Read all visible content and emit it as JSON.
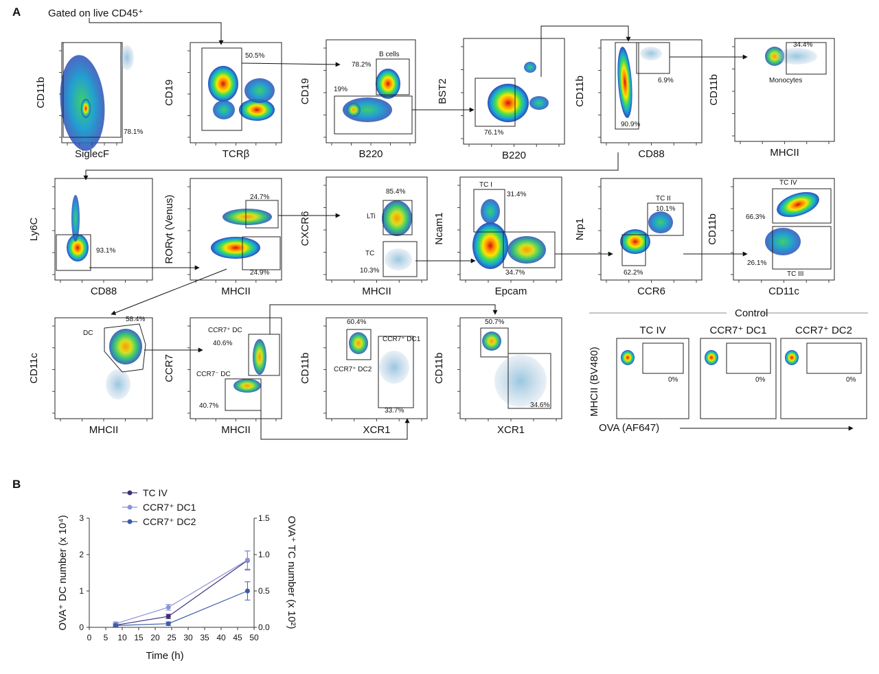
{
  "panel_a": {
    "letter": "A",
    "gate_note": "Gated on live CD45⁺",
    "plots": [
      {
        "id": "p1",
        "x": "SiglecF",
        "y": "CD11b",
        "gates": [
          {
            "label": "",
            "pct": "78.1%"
          }
        ]
      },
      {
        "id": "p2",
        "x": "TCRβ",
        "y": "CD19",
        "gates": [
          {
            "label": "",
            "pct": "50.5%"
          }
        ]
      },
      {
        "id": "p3",
        "x": "B220",
        "y": "CD19",
        "gates": [
          {
            "label": "B cells",
            "pct": "78.2%"
          },
          {
            "label": "",
            "pct": "19%"
          }
        ]
      },
      {
        "id": "p4",
        "x": "B220",
        "y": "BST2",
        "gates": [
          {
            "label": "",
            "pct": "76.1%"
          }
        ]
      },
      {
        "id": "p5",
        "x": "CD88",
        "y": "CD11b",
        "gates": [
          {
            "label": "",
            "pct": "6.9%"
          },
          {
            "label": "",
            "pct": "90.9%"
          }
        ]
      },
      {
        "id": "p6",
        "x": "MHCII",
        "y": "CD11b",
        "gates": [
          {
            "label": "Monocytes",
            "pct": "34.4%"
          }
        ]
      },
      {
        "id": "p7",
        "x": "CD88",
        "y": "Ly6C",
        "gates": [
          {
            "label": "",
            "pct": "93.1%"
          }
        ]
      },
      {
        "id": "p8",
        "x": "MHCII",
        "y": "RORγt (Venus)",
        "gates": [
          {
            "label": "",
            "pct": "24.7%"
          },
          {
            "label": "",
            "pct": "24.9%"
          }
        ]
      },
      {
        "id": "p9",
        "x": "MHCII",
        "y": "CXCR6",
        "gates": [
          {
            "label": "LTi",
            "pct": "85.4%"
          },
          {
            "label": "TC",
            "pct": "10.3%"
          }
        ]
      },
      {
        "id": "p10",
        "x": "Epcam",
        "y": "Ncam1",
        "gates": [
          {
            "label": "TC I",
            "pct": "31.4%"
          },
          {
            "label": "",
            "pct": "34.7%"
          }
        ]
      },
      {
        "id": "p11",
        "x": "CCR6",
        "y": "Nrp1",
        "gates": [
          {
            "label": "TC II",
            "pct": "10.1%"
          },
          {
            "label": "",
            "pct": "62.2%"
          }
        ]
      },
      {
        "id": "p12",
        "x": "CD11c",
        "y": "CD11b",
        "gates": [
          {
            "label": "TC IV",
            "pct": "66.3%"
          },
          {
            "label": "TC III",
            "pct": "26.1%"
          }
        ]
      },
      {
        "id": "p13",
        "x": "MHCII",
        "y": "CD11c",
        "gates": [
          {
            "label": "DC",
            "pct": "58.4%"
          }
        ]
      },
      {
        "id": "p14",
        "x": "MHCII",
        "y": "CCR7",
        "gates": [
          {
            "label": "CCR7⁺ DC",
            "pct": "40.6%"
          },
          {
            "label": "CCR7⁻ DC",
            "pct": "40.7%"
          }
        ]
      },
      {
        "id": "p15",
        "x": "XCR1",
        "y": "CD11b",
        "gates": [
          {
            "label": "CCR7⁺ DC2",
            "pct": "60.4%"
          },
          {
            "label": "CCR7⁺ DC1",
            "pct": "33.7%"
          }
        ]
      },
      {
        "id": "p16",
        "x": "XCR1",
        "y": "CD11b",
        "gates": [
          {
            "label": "",
            "pct": "50.7%"
          },
          {
            "label": "",
            "pct": "34.6%"
          }
        ]
      }
    ],
    "control": {
      "title": "Control",
      "panels": [
        {
          "title": "TC IV",
          "pct": "0%"
        },
        {
          "title": "CCR7⁺ DC1",
          "pct": "0%"
        },
        {
          "title": "CCR7⁺ DC2",
          "pct": "0%"
        }
      ],
      "y_label": "MHCII (BV480)",
      "x_label": "OVA (AF647)"
    }
  },
  "panel_b": {
    "letter": "B",
    "chart_data": {
      "type": "line",
      "xlabel": "Time (h)",
      "ylabel": "OVA⁺ DC number (x 10⁴)",
      "ylabel_right": "OVA⁺ TC number (x 10²)",
      "xlim": [
        0,
        50
      ],
      "ylim": [
        0,
        3
      ],
      "ylim_right": [
        0,
        1.5
      ],
      "x_ticks": [
        "0",
        "5",
        "10",
        "15",
        "20",
        "25",
        "30",
        "35",
        "40",
        "45",
        "50"
      ],
      "y_ticks": [
        "0",
        "1",
        "2",
        "3"
      ],
      "y_ticks_right": [
        "0.0",
        "0.5",
        "1.0",
        "1.5"
      ],
      "series": [
        {
          "name": "TC IV",
          "axis": "right",
          "color": "#3f2f7a",
          "x": [
            8,
            24,
            48
          ],
          "y": [
            0.03,
            0.15,
            0.92
          ],
          "err": [
            0.02,
            0.03,
            0.13
          ]
        },
        {
          "name": "CCR7⁺ DC1",
          "axis": "left",
          "color": "#8a93d6",
          "x": [
            8,
            24,
            48
          ],
          "y": [
            0.1,
            0.55,
            1.85
          ],
          "err": [
            0.05,
            0.08,
            0.25
          ]
        },
        {
          "name": "CCR7⁺ DC2",
          "axis": "left",
          "color": "#3b5ca8",
          "x": [
            8,
            24,
            48
          ],
          "y": [
            0.05,
            0.1,
            1.0
          ],
          "err": [
            0.03,
            0.05,
            0.25
          ]
        }
      ]
    }
  }
}
